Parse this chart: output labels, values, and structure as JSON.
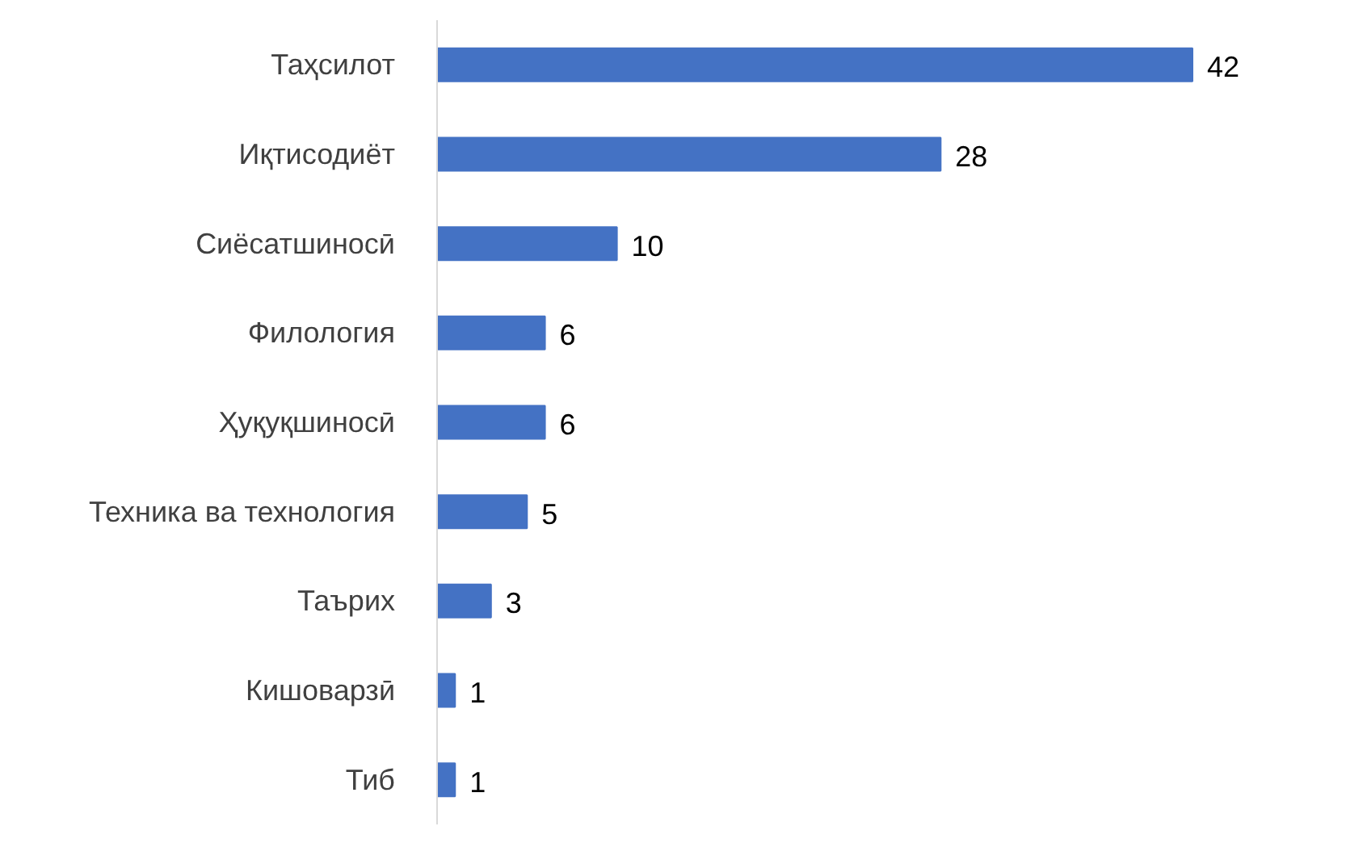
{
  "chart_data": {
    "type": "bar",
    "orientation": "horizontal",
    "categories": [
      "Таҳсилот",
      "Иқтисодиёт",
      "Сиёсатшиносӣ",
      "Филология",
      "Ҳуқуқшиносӣ",
      "Техника ва технология",
      "Таърих",
      "Кишоварзӣ",
      "Тиб"
    ],
    "values": [
      42,
      28,
      10,
      6,
      6,
      5,
      3,
      1,
      1
    ],
    "color": "#4472c4",
    "data_labels": true,
    "grid": false,
    "tick_labels": "y"
  }
}
